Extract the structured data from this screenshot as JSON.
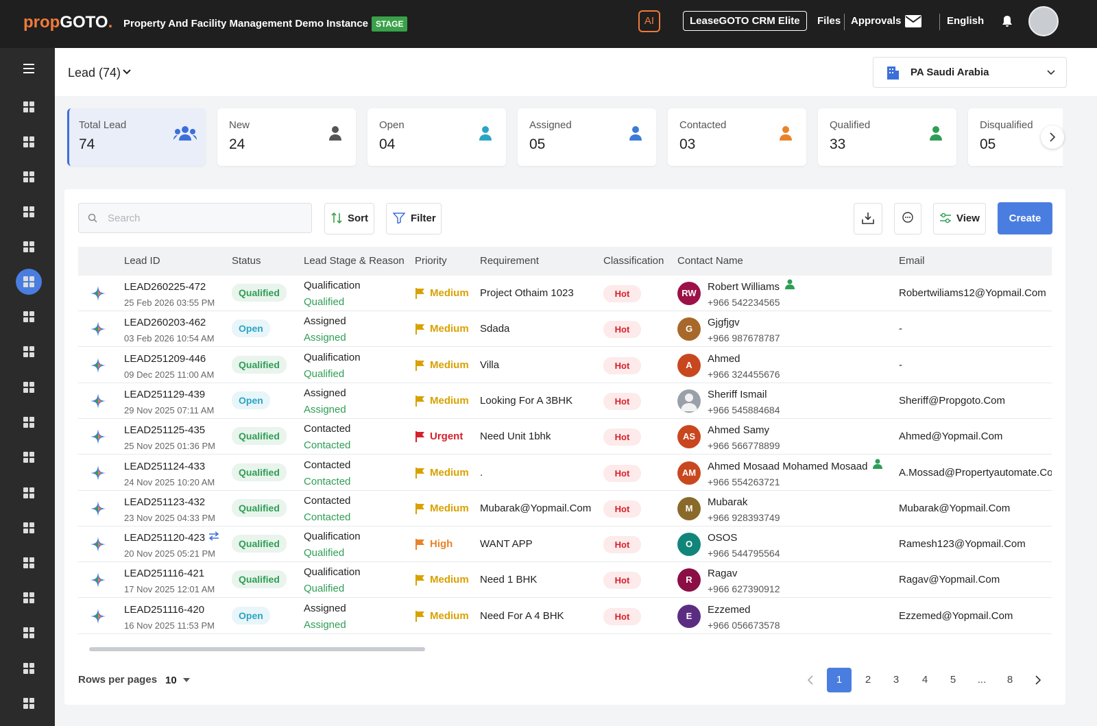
{
  "header": {
    "logo": [
      "prop",
      "GOTO",
      "."
    ],
    "instance": "Property And Facility Management Demo Instance",
    "badge": "STAGE",
    "ai": "AI",
    "product": "LeaseGOTO CRM Elite",
    "links": [
      "Files",
      "Approvals"
    ],
    "language": "English"
  },
  "page": {
    "title": "Lead (74)",
    "property": "PA Saudi Arabia"
  },
  "cards": [
    {
      "label": "Total Lead",
      "value": "74",
      "color": "#3c6fd8"
    },
    {
      "label": "New",
      "value": "24",
      "color": "#555555"
    },
    {
      "label": "Open",
      "value": "04",
      "color": "#2aa5c4"
    },
    {
      "label": "Assigned",
      "value": "05",
      "color": "#3c7bd8"
    },
    {
      "label": "Contacted",
      "value": "03",
      "color": "#e8832a"
    },
    {
      "label": "Qualified",
      "value": "33",
      "color": "#2e9e55"
    },
    {
      "label": "Disqualified",
      "value": "05",
      "color": "#d9534f"
    }
  ],
  "toolbar": {
    "search": "Search",
    "sort": "Sort",
    "filter": "Filter",
    "view": "View",
    "create": "Create"
  },
  "status_colors": {
    "Qualified": "#2e9e55",
    "Open": "#2aa5c4"
  },
  "table": {
    "columns": [
      "Lead ID",
      "Status",
      "Lead Stage & Reason",
      "Priority",
      "Requirement",
      "Classification",
      "Contact Name",
      "Email"
    ],
    "rows": [
      {
        "id": "LEAD260225-472",
        "date": "25 Feb 2026 03:55 PM",
        "status": "Qualified",
        "stage": "Qualification",
        "reason": "Qualified",
        "priority": "Medium",
        "priority_color": "#d9a100",
        "requirement": "Project Othaim 1023",
        "classification": "Hot",
        "avatar": "RW",
        "avatar_color": "#9c1147",
        "name": "Robert Williams",
        "verified": true,
        "phone": "+966 542234565",
        "email": "Robertwiliams12@Yopmail.Com"
      },
      {
        "id": "LEAD260203-462",
        "date": "03 Feb 2026 10:54 AM",
        "status": "Open",
        "stage": "Assigned",
        "reason": "Assigned",
        "priority": "Medium",
        "priority_color": "#d9a100",
        "requirement": "Sdada",
        "classification": "Hot",
        "avatar": "G",
        "avatar_color": "#a8682a",
        "name": "Gjgfjgv",
        "phone": "+966 987678787",
        "email": "-"
      },
      {
        "id": "LEAD251209-446",
        "date": "09 Dec 2025 11:00 AM",
        "status": "Qualified",
        "stage": "Qualification",
        "reason": "Qualified",
        "priority": "Medium",
        "priority_color": "#d9a100",
        "requirement": "Villa",
        "classification": "Hot",
        "avatar": "A",
        "avatar_color": "#c9471f",
        "name": "Ahmed",
        "phone": "+966 324455676",
        "email": "-"
      },
      {
        "id": "LEAD251129-439",
        "date": "29 Nov 2025 07:11 AM",
        "status": "Open",
        "stage": "Assigned",
        "reason": "Assigned",
        "priority": "Medium",
        "priority_color": "#d9a100",
        "requirement": "Looking For A 3BHK",
        "classification": "Hot",
        "avatar_color": "#9aa0a8",
        "name": "Sheriff Ismail",
        "phone": "+966 545884684",
        "email": "Sheriff@Propgoto.Com"
      },
      {
        "id": "LEAD251125-435",
        "date": "25 Nov 2025 01:36 PM",
        "status": "Qualified",
        "stage": "Contacted",
        "reason": "Contacted",
        "priority": "Urgent",
        "priority_color": "#d6202b",
        "requirement": "Need Unit 1bhk",
        "classification": "Hot",
        "avatar": "AS",
        "avatar_color": "#c9471f",
        "name": "Ahmed Samy",
        "phone": "+966 566778899",
        "email": "Ahmed@Yopmail.Com"
      },
      {
        "id": "LEAD251124-433",
        "date": "24 Nov 2025 10:20 AM",
        "status": "Qualified",
        "stage": "Contacted",
        "reason": "Contacted",
        "priority": "Medium",
        "priority_color": "#d9a100",
        "requirement": ".",
        "classification": "Hot",
        "avatar": "AM",
        "avatar_color": "#c9471f",
        "name": "Ahmed Mosaad Mohamed Mosaad",
        "verified": true,
        "phone": "+966 554263721",
        "email": "A.Mossad@Propertyautomate.Co"
      },
      {
        "id": "LEAD251123-432",
        "date": "23 Nov 2025 04:33 PM",
        "status": "Qualified",
        "stage": "Contacted",
        "reason": "Contacted",
        "priority": "Medium",
        "priority_color": "#d9a100",
        "requirement": "Mubarak@Yopmail.Com",
        "classification": "Hot",
        "avatar": "M",
        "avatar_color": "#8a6a2a",
        "name": "Mubarak",
        "phone": "+966 928393749",
        "email": "Mubarak@Yopmail.Com"
      },
      {
        "id": "LEAD251120-423",
        "transfer": true,
        "date": "20 Nov 2025 05:21 PM",
        "status": "Qualified",
        "stage": "Qualification",
        "reason": "Qualified",
        "priority": "High",
        "priority_color": "#e8832a",
        "requirement": "WANT APP",
        "classification": "Hot",
        "avatar": "O",
        "avatar_color": "#12857a",
        "name": "OSOS",
        "phone": "+966 544795564",
        "email": "Ramesh123@Yopmail.Com"
      },
      {
        "id": "LEAD251116-421",
        "date": "17 Nov 2025 12:01 AM",
        "status": "Qualified",
        "stage": "Qualification",
        "reason": "Qualified",
        "priority": "Medium",
        "priority_color": "#d9a100",
        "requirement": "Need 1 BHK",
        "classification": "Hot",
        "avatar": "R",
        "avatar_color": "#8b0f45",
        "name": "Ragav",
        "phone": "+966 627390912",
        "email": "Ragav@Yopmail.Com"
      },
      {
        "id": "LEAD251116-420",
        "date": "16 Nov 2025 11:53 PM",
        "status": "Open",
        "stage": "Assigned",
        "reason": "Assigned",
        "priority": "Medium",
        "priority_color": "#d9a100",
        "requirement": "Need For A 4 BHK",
        "classification": "Hot",
        "avatar": "E",
        "avatar_color": "#5b2d82",
        "name": "Ezzemed",
        "phone": "+966 056673578",
        "email": "Ezzemed@Yopmail.Com"
      }
    ]
  },
  "footer": {
    "rows_label": "Rows per pages",
    "rows_value": "10",
    "pages": [
      "1",
      "2",
      "3",
      "4",
      "5",
      "...",
      "8"
    ],
    "current": 0
  }
}
